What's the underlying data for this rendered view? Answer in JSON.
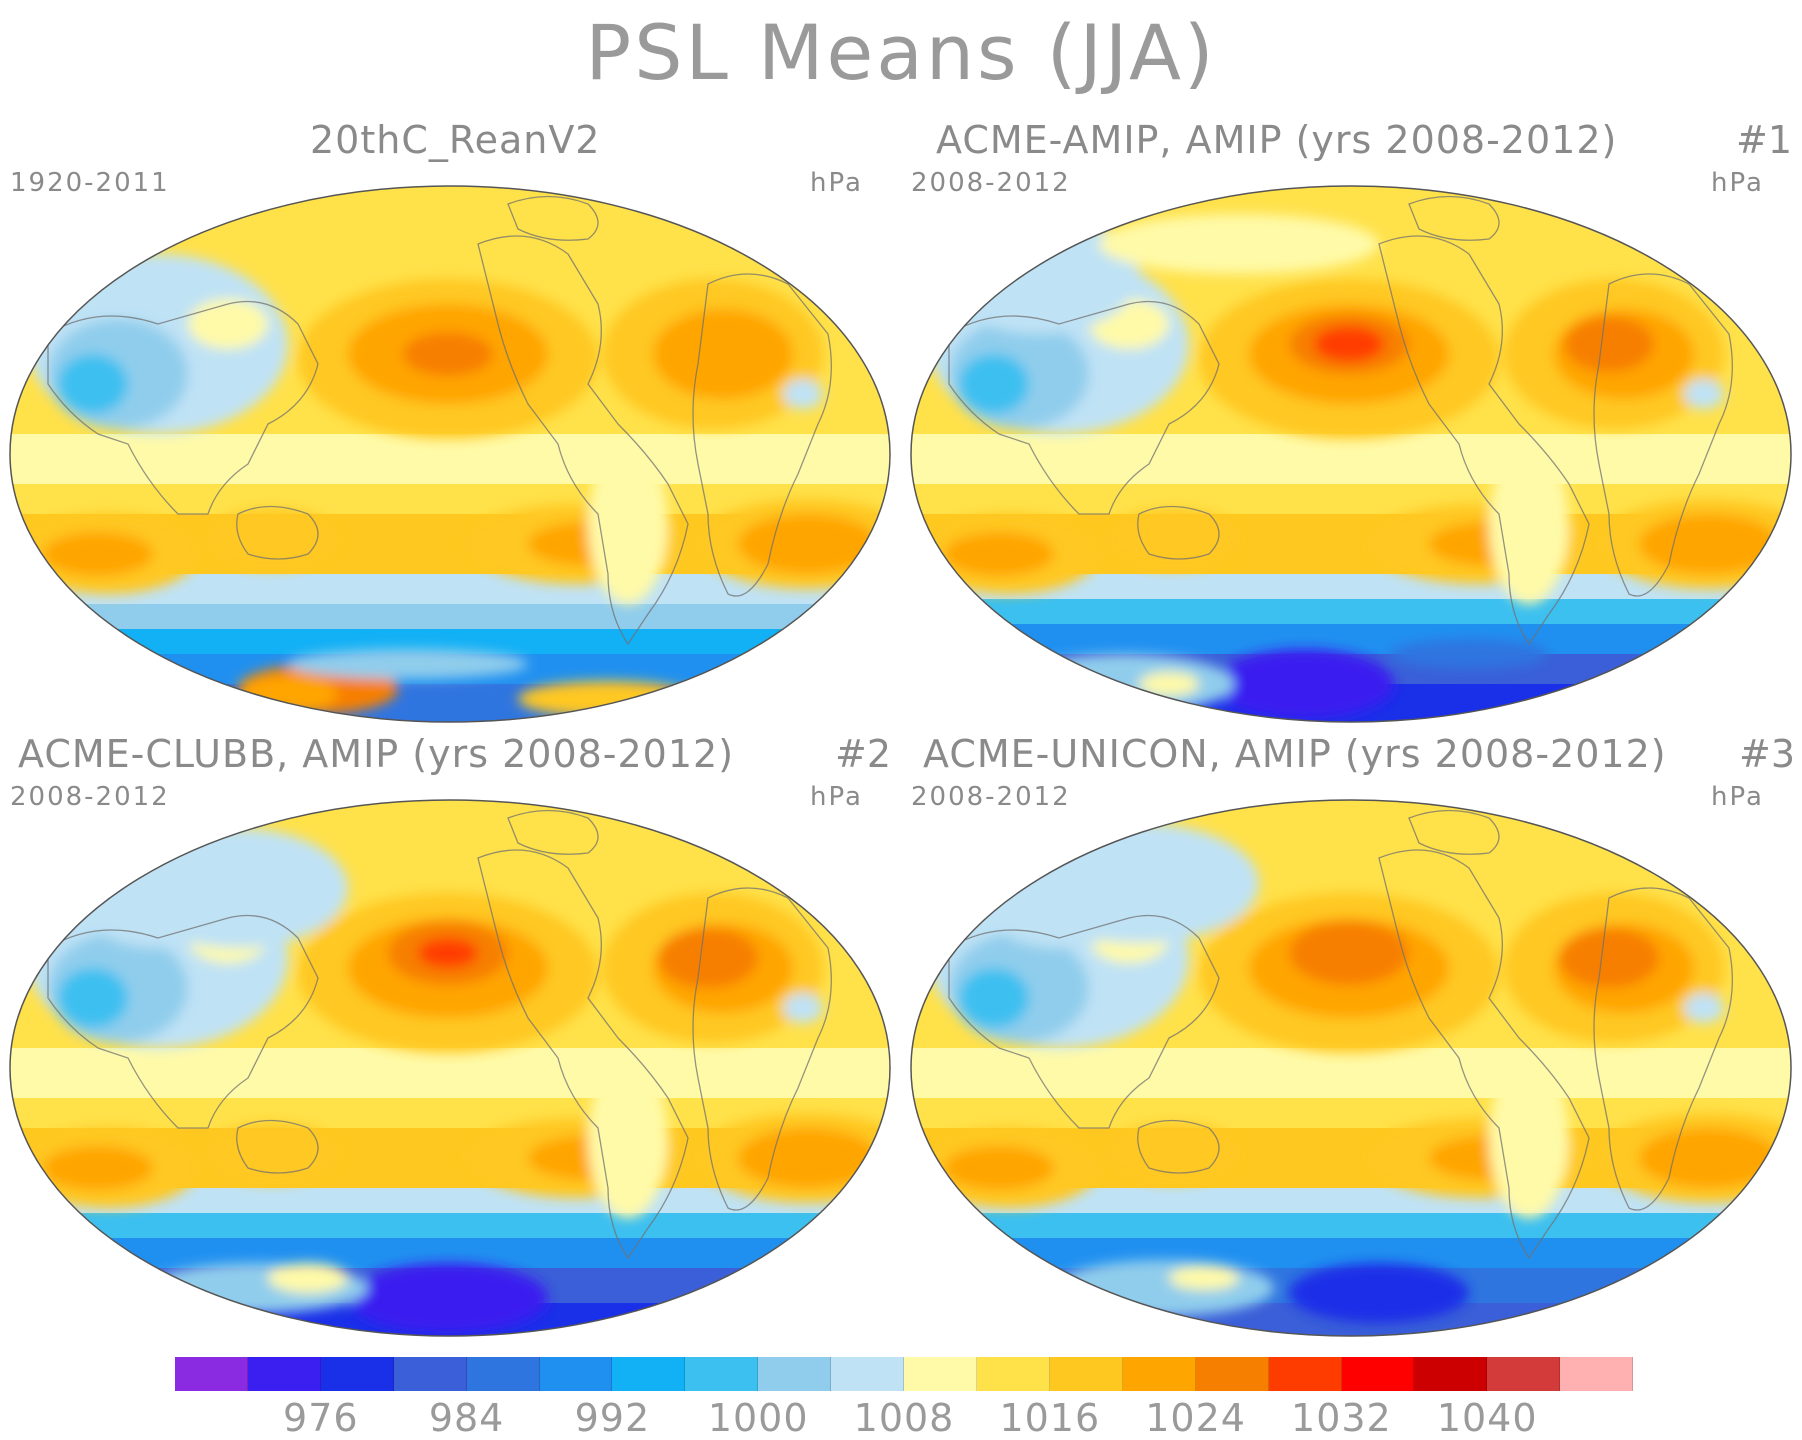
{
  "title": "PSL Means (JJA)",
  "panels": [
    {
      "title": "20thC_ReanV2",
      "number": "",
      "left": "1920-2011",
      "right": "hPa",
      "variant": "rean"
    },
    {
      "title": "ACME-AMIP, AMIP (yrs 2008-2012)",
      "number": "#1",
      "left": "2008-2012",
      "right": "hPa",
      "variant": "amip"
    },
    {
      "title": "ACME-CLUBB, AMIP (yrs 2008-2012)",
      "number": "#2",
      "left": "2008-2012",
      "right": "hPa",
      "variant": "clubb"
    },
    {
      "title": "ACME-UNICON, AMIP (yrs 2008-2012)",
      "number": "#3",
      "left": "2008-2012",
      "right": "hPa",
      "variant": "unicon"
    }
  ],
  "colorbar": {
    "colors": [
      "#8a2be2",
      "#3a1ff0",
      "#1a2fe8",
      "#3a5fd8",
      "#2f75e0",
      "#2090f0",
      "#12b0f5",
      "#3cc0f0",
      "#90cdec",
      "#bfe2f5",
      "#fffaa8",
      "#ffe14a",
      "#ffc820",
      "#ffa500",
      "#f77f00",
      "#ff3c00",
      "#ff0000",
      "#cc0000",
      "#d33a3a",
      "#ffb0b0"
    ],
    "labels": [
      "976",
      "984",
      "992",
      "1000",
      "1008",
      "1016",
      "1024",
      "1032",
      "1040"
    ]
  }
}
